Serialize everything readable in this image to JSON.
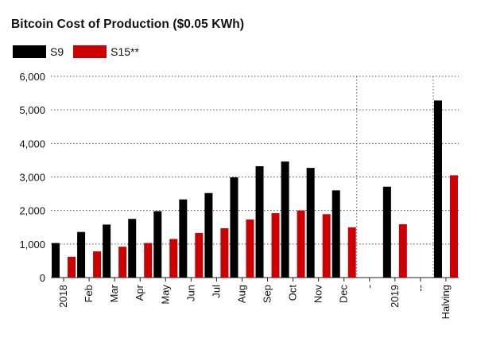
{
  "chart_data": {
    "type": "bar",
    "title": "Bitcoin Cost of Production ($0.05 KWh)",
    "xlabel": "",
    "ylabel": "",
    "categories": [
      "2018",
      "Feb",
      "Mar",
      "Apr",
      "May",
      "Jun",
      "Jul",
      "Aug",
      "Sep",
      "Oct",
      "Nov",
      "Dec",
      "-",
      "2019",
      "--",
      "Halving"
    ],
    "series": [
      {
        "name": "S9",
        "color": "#000000",
        "values": [
          1030,
          1360,
          1580,
          1750,
          1980,
          2330,
          2520,
          2990,
          3320,
          3460,
          3270,
          2600,
          null,
          2710,
          null,
          5280
        ]
      },
      {
        "name": "S15**",
        "color": "#cc0000",
        "values": [
          620,
          780,
          920,
          1030,
          1150,
          1330,
          1470,
          1730,
          1920,
          2000,
          1890,
          1500,
          null,
          1590,
          null,
          3050
        ]
      }
    ],
    "ylim": [
      0,
      6000
    ],
    "yticks": [
      0,
      1000,
      2000,
      3000,
      4000,
      5000,
      6000
    ],
    "ytick_labels": [
      "0",
      "1,000",
      "2,000",
      "3,000",
      "4,000",
      "5,000",
      "6,000"
    ],
    "grid": true,
    "legend_position": "top-left",
    "separator_after_categories": [
      "Dec",
      "--"
    ]
  }
}
